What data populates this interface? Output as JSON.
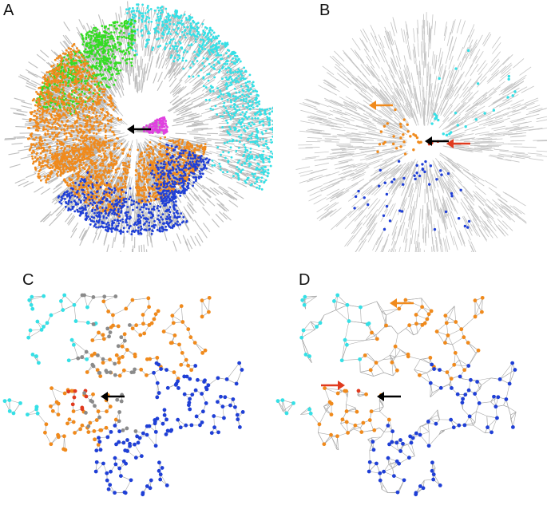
{
  "panels": [
    {
      "id": "A",
      "label": "A"
    },
    {
      "id": "B",
      "label": "B"
    },
    {
      "id": "C",
      "label": "C"
    },
    {
      "id": "D",
      "label": "D"
    }
  ],
  "colors": {
    "orange": "#f08a1c",
    "blue": "#1f3fd6",
    "cyan": "#35e0e6",
    "green": "#33dd22",
    "gray": "#8a8a8a",
    "edge_gray": "#bdbdbd",
    "red": "#e03a1e",
    "magenta": "#e040e0",
    "black": "#000000"
  },
  "arrows": {
    "A": [
      {
        "color": "black",
        "direction": "left"
      }
    ],
    "B": [
      {
        "color": "black",
        "direction": "left"
      },
      {
        "color": "red",
        "direction": "left"
      },
      {
        "color": "orange",
        "direction": "left"
      }
    ],
    "C": [
      {
        "color": "black",
        "direction": "left"
      }
    ],
    "D": [
      {
        "color": "black",
        "direction": "left"
      },
      {
        "color": "red",
        "direction": "right"
      },
      {
        "color": "orange",
        "direction": "left"
      }
    ]
  }
}
